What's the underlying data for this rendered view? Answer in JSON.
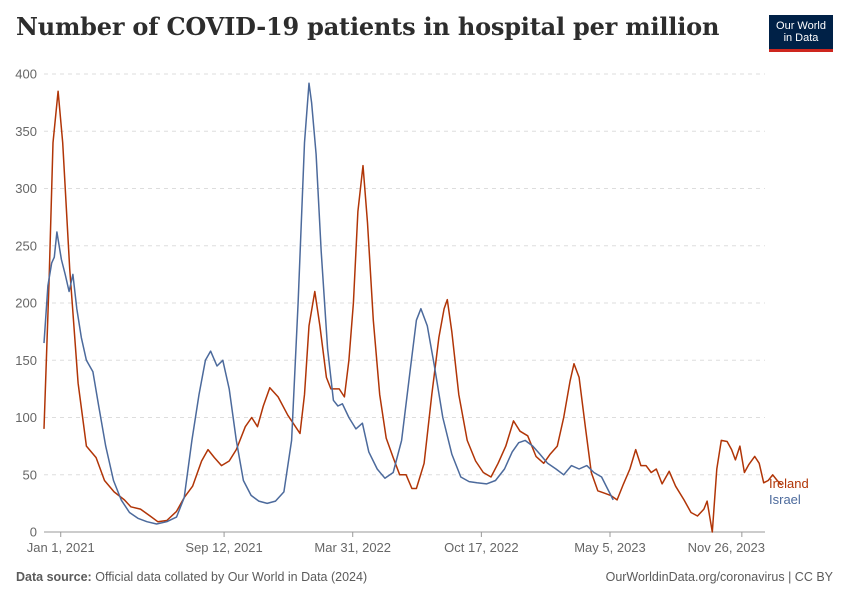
{
  "header": {
    "title": "Number of COVID-19 patients in hospital per million",
    "logo_line1": "Our World",
    "logo_line2": "in Data"
  },
  "footer": {
    "source_label": "Data source:",
    "source_text": "Official data collated by Our World in Data (2024)",
    "right_text": "OurWorldinData.org/coronavirus | CC BY"
  },
  "colors": {
    "ireland": "#b13507",
    "israel": "#4c6a9c",
    "grid": "#dddddd",
    "axis": "#999999"
  },
  "chart_data": {
    "type": "line",
    "title": "Number of COVID-19 patients in hospital per million",
    "ylim": [
      0,
      400
    ],
    "y_ticks": [
      0,
      50,
      100,
      150,
      200,
      250,
      300,
      350,
      400
    ],
    "x_range": [
      "2020-12-06",
      "2024-01-01"
    ],
    "x_ticks": [
      {
        "date": "2021-01-01",
        "label": "Jan 1, 2021"
      },
      {
        "date": "2021-09-12",
        "label": "Sep 12, 2021"
      },
      {
        "date": "2022-03-31",
        "label": "Mar 31, 2022"
      },
      {
        "date": "2022-10-17",
        "label": "Oct 17, 2022"
      },
      {
        "date": "2023-05-05",
        "label": "May 5, 2023"
      },
      {
        "date": "2023-11-26",
        "label": "Nov 26, 2023"
      }
    ],
    "grid": true,
    "series": [
      {
        "name": "Ireland",
        "color": "#b13507",
        "points": [
          [
            "2020-12-06",
            90
          ],
          [
            "2020-12-14",
            220
          ],
          [
            "2020-12-20",
            340
          ],
          [
            "2020-12-28",
            385
          ],
          [
            "2021-01-04",
            340
          ],
          [
            "2021-01-15",
            230
          ],
          [
            "2021-01-28",
            130
          ],
          [
            "2021-02-10",
            75
          ],
          [
            "2021-02-25",
            65
          ],
          [
            "2021-03-10",
            45
          ],
          [
            "2021-03-25",
            35
          ],
          [
            "2021-04-10",
            28
          ],
          [
            "2021-04-20",
            22
          ],
          [
            "2021-05-05",
            20
          ],
          [
            "2021-05-20",
            14
          ],
          [
            "2021-06-01",
            9
          ],
          [
            "2021-06-15",
            10
          ],
          [
            "2021-06-30",
            18
          ],
          [
            "2021-07-12",
            30
          ],
          [
            "2021-07-25",
            40
          ],
          [
            "2021-08-08",
            62
          ],
          [
            "2021-08-18",
            72
          ],
          [
            "2021-08-28",
            65
          ],
          [
            "2021-09-08",
            58
          ],
          [
            "2021-09-20",
            62
          ],
          [
            "2021-10-01",
            72
          ],
          [
            "2021-10-15",
            92
          ],
          [
            "2021-10-25",
            100
          ],
          [
            "2021-11-03",
            92
          ],
          [
            "2021-11-12",
            110
          ],
          [
            "2021-11-22",
            126
          ],
          [
            "2021-12-05",
            118
          ],
          [
            "2021-12-20",
            102
          ],
          [
            "2022-01-01",
            92
          ],
          [
            "2022-01-08",
            86
          ],
          [
            "2022-01-15",
            120
          ],
          [
            "2022-01-22",
            180
          ],
          [
            "2022-01-31",
            210
          ],
          [
            "2022-02-08",
            180
          ],
          [
            "2022-02-18",
            135
          ],
          [
            "2022-02-25",
            125
          ],
          [
            "2022-03-10",
            125
          ],
          [
            "2022-03-18",
            118
          ],
          [
            "2022-03-25",
            150
          ],
          [
            "2022-04-01",
            200
          ],
          [
            "2022-04-08",
            280
          ],
          [
            "2022-04-16",
            320
          ],
          [
            "2022-04-23",
            270
          ],
          [
            "2022-05-02",
            185
          ],
          [
            "2022-05-12",
            120
          ],
          [
            "2022-05-22",
            82
          ],
          [
            "2022-06-02",
            65
          ],
          [
            "2022-06-12",
            50
          ],
          [
            "2022-06-22",
            50
          ],
          [
            "2022-07-01",
            38
          ],
          [
            "2022-07-08",
            38
          ],
          [
            "2022-07-20",
            60
          ],
          [
            "2022-08-01",
            120
          ],
          [
            "2022-08-12",
            170
          ],
          [
            "2022-08-20",
            195
          ],
          [
            "2022-08-25",
            203
          ],
          [
            "2022-09-01",
            175
          ],
          [
            "2022-09-12",
            120
          ],
          [
            "2022-09-25",
            80
          ],
          [
            "2022-10-08",
            62
          ],
          [
            "2022-10-20",
            52
          ],
          [
            "2022-11-01",
            48
          ],
          [
            "2022-11-12",
            60
          ],
          [
            "2022-11-24",
            75
          ],
          [
            "2022-12-06",
            97
          ],
          [
            "2022-12-16",
            88
          ],
          [
            "2022-12-28",
            84
          ],
          [
            "2023-01-10",
            66
          ],
          [
            "2023-01-22",
            60
          ],
          [
            "2023-02-01",
            68
          ],
          [
            "2023-02-12",
            75
          ],
          [
            "2023-02-22",
            100
          ],
          [
            "2023-03-04",
            132
          ],
          [
            "2023-03-10",
            147
          ],
          [
            "2023-03-18",
            135
          ],
          [
            "2023-03-28",
            90
          ],
          [
            "2023-04-06",
            52
          ],
          [
            "2023-04-16",
            36
          ],
          [
            "2023-04-26",
            34
          ],
          [
            "2023-05-06",
            32
          ],
          [
            "2023-05-16",
            28
          ],
          [
            "2023-05-26",
            42
          ],
          [
            "2023-06-05",
            55
          ],
          [
            "2023-06-14",
            72
          ],
          [
            "2023-06-22",
            58
          ],
          [
            "2023-06-30",
            58
          ],
          [
            "2023-07-08",
            52
          ],
          [
            "2023-07-16",
            55
          ],
          [
            "2023-07-25",
            42
          ],
          [
            "2023-08-05",
            53
          ],
          [
            "2023-08-15",
            40
          ],
          [
            "2023-08-28",
            28
          ],
          [
            "2023-09-08",
            17
          ],
          [
            "2023-09-18",
            14
          ],
          [
            "2023-09-28",
            20
          ],
          [
            "2023-10-03",
            27
          ],
          [
            "2023-10-11",
            0
          ],
          [
            "2023-10-18",
            55
          ],
          [
            "2023-10-25",
            80
          ],
          [
            "2023-11-03",
            79
          ],
          [
            "2023-11-10",
            72
          ],
          [
            "2023-11-16",
            63
          ],
          [
            "2023-11-23",
            75
          ],
          [
            "2023-11-30",
            52
          ],
          [
            "2023-12-07",
            59
          ],
          [
            "2023-12-16",
            66
          ],
          [
            "2023-12-23",
            60
          ],
          [
            "2023-12-30",
            43
          ],
          [
            "2024-01-06",
            45
          ],
          [
            "2024-01-13",
            50
          ],
          [
            "2024-01-20",
            45
          ],
          [
            "2024-01-27",
            41
          ]
        ]
      },
      {
        "name": "Israel",
        "color": "#4c6a9c",
        "points": [
          [
            "2020-12-06",
            165
          ],
          [
            "2020-12-12",
            215
          ],
          [
            "2020-12-18",
            235
          ],
          [
            "2020-12-22",
            240
          ],
          [
            "2020-12-26",
            262
          ],
          [
            "2021-01-02",
            238
          ],
          [
            "2021-01-08",
            225
          ],
          [
            "2021-01-14",
            210
          ],
          [
            "2021-01-20",
            225
          ],
          [
            "2021-01-26",
            195
          ],
          [
            "2021-02-02",
            170
          ],
          [
            "2021-02-10",
            150
          ],
          [
            "2021-02-20",
            140
          ],
          [
            "2021-03-01",
            110
          ],
          [
            "2021-03-12",
            75
          ],
          [
            "2021-03-24",
            45
          ],
          [
            "2021-04-05",
            28
          ],
          [
            "2021-04-18",
            17
          ],
          [
            "2021-05-01",
            12
          ],
          [
            "2021-05-15",
            9
          ],
          [
            "2021-05-30",
            7
          ],
          [
            "2021-06-15",
            9
          ],
          [
            "2021-06-30",
            13
          ],
          [
            "2021-07-12",
            30
          ],
          [
            "2021-07-24",
            80
          ],
          [
            "2021-08-04",
            120
          ],
          [
            "2021-08-14",
            150
          ],
          [
            "2021-08-22",
            158
          ],
          [
            "2021-09-01",
            145
          ],
          [
            "2021-09-10",
            150
          ],
          [
            "2021-09-20",
            125
          ],
          [
            "2021-10-01",
            80
          ],
          [
            "2021-10-12",
            45
          ],
          [
            "2021-10-24",
            32
          ],
          [
            "2021-11-05",
            27
          ],
          [
            "2021-11-18",
            25
          ],
          [
            "2021-12-01",
            27
          ],
          [
            "2021-12-14",
            35
          ],
          [
            "2021-12-26",
            80
          ],
          [
            "2022-01-05",
            200
          ],
          [
            "2022-01-15",
            340
          ],
          [
            "2022-01-22",
            392
          ],
          [
            "2022-01-26",
            375
          ],
          [
            "2022-02-02",
            330
          ],
          [
            "2022-02-10",
            245
          ],
          [
            "2022-02-20",
            160
          ],
          [
            "2022-03-01",
            115
          ],
          [
            "2022-03-08",
            110
          ],
          [
            "2022-03-15",
            112
          ],
          [
            "2022-03-25",
            100
          ],
          [
            "2022-04-05",
            90
          ],
          [
            "2022-04-15",
            95
          ],
          [
            "2022-04-25",
            70
          ],
          [
            "2022-05-08",
            55
          ],
          [
            "2022-05-20",
            47
          ],
          [
            "2022-06-02",
            52
          ],
          [
            "2022-06-15",
            80
          ],
          [
            "2022-06-28",
            140
          ],
          [
            "2022-07-08",
            185
          ],
          [
            "2022-07-15",
            195
          ],
          [
            "2022-07-25",
            180
          ],
          [
            "2022-08-05",
            145
          ],
          [
            "2022-08-18",
            100
          ],
          [
            "2022-09-01",
            68
          ],
          [
            "2022-09-15",
            48
          ],
          [
            "2022-09-28",
            44
          ],
          [
            "2022-10-10",
            43
          ],
          [
            "2022-10-25",
            42
          ],
          [
            "2022-11-08",
            45
          ],
          [
            "2022-11-22",
            55
          ],
          [
            "2022-12-04",
            70
          ],
          [
            "2022-12-14",
            78
          ],
          [
            "2022-12-24",
            80
          ],
          [
            "2023-01-05",
            75
          ],
          [
            "2023-01-16",
            68
          ],
          [
            "2023-01-28",
            60
          ],
          [
            "2023-02-10",
            55
          ],
          [
            "2023-02-22",
            50
          ],
          [
            "2023-03-06",
            58
          ],
          [
            "2023-03-18",
            55
          ],
          [
            "2023-03-30",
            58
          ],
          [
            "2023-04-10",
            52
          ],
          [
            "2023-04-22",
            48
          ],
          [
            "2023-05-01",
            38
          ],
          [
            "2023-05-10",
            28
          ]
        ]
      }
    ]
  },
  "labels": {
    "ireland": "Ireland",
    "israel": "Israel"
  }
}
